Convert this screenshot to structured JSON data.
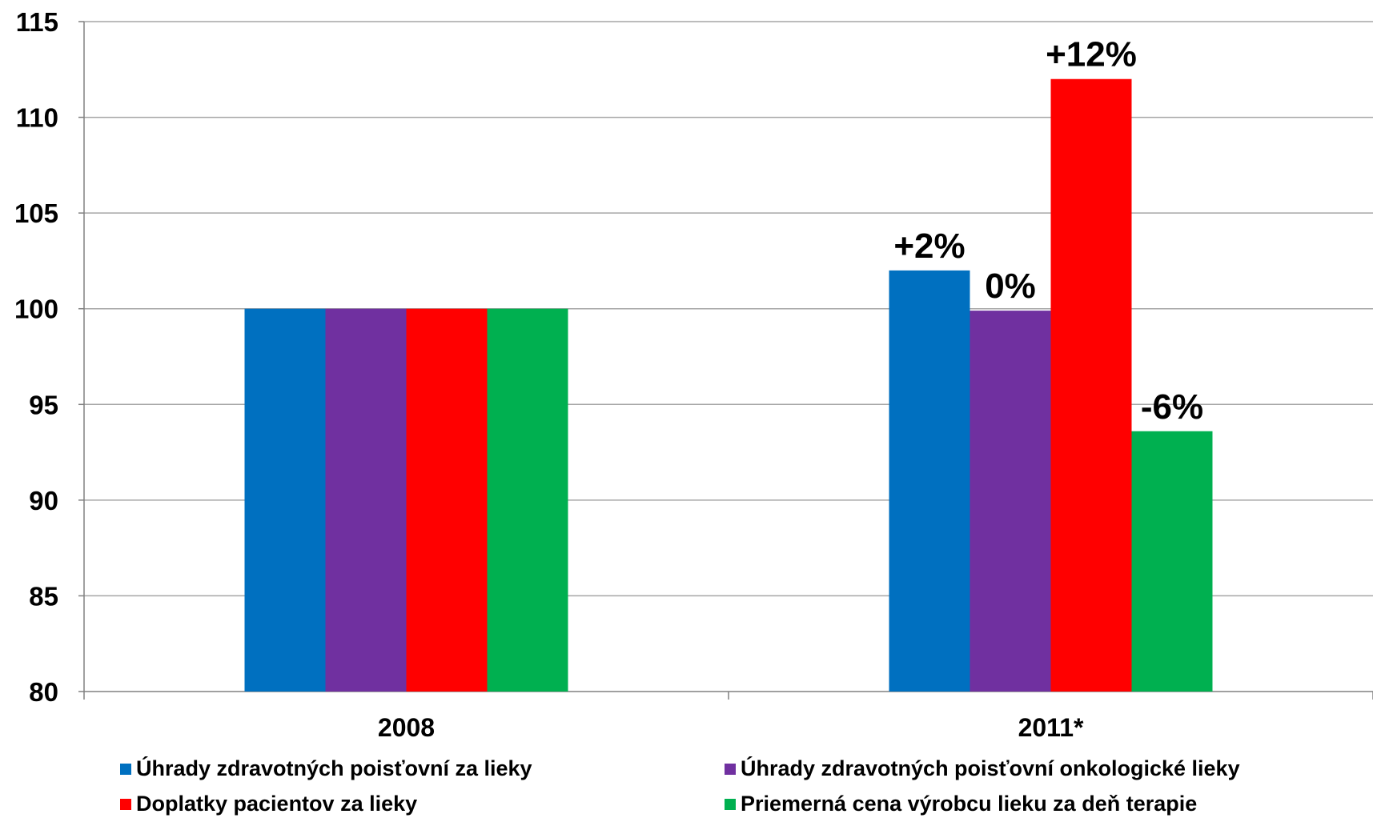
{
  "chart_data": {
    "type": "bar",
    "categories": [
      "2008",
      "2011*"
    ],
    "ylim": [
      80,
      115
    ],
    "yticks": [
      80,
      85,
      90,
      95,
      100,
      105,
      110,
      115
    ],
    "grid": true,
    "legend_position": "bottom",
    "series": [
      {
        "name": "Úhrady zdravotných poisťovní za lieky",
        "color": "#0070C0",
        "values": [
          100,
          102
        ],
        "labels": [
          "",
          "+2%"
        ]
      },
      {
        "name": "Úhrady zdravotných poisťovní onkologické lieky",
        "color": "#7030A0",
        "values": [
          100,
          99.9
        ],
        "labels": [
          "",
          "0%"
        ]
      },
      {
        "name": "Doplatky pacientov za lieky",
        "color": "#FF0000",
        "values": [
          100,
          112
        ],
        "labels": [
          "",
          "+12%"
        ]
      },
      {
        "name": "Priemerná cena výrobcu lieku za deň terapie",
        "color": "#00B050",
        "values": [
          100,
          93.6
        ],
        "labels": [
          "",
          "-6%"
        ]
      }
    ]
  }
}
